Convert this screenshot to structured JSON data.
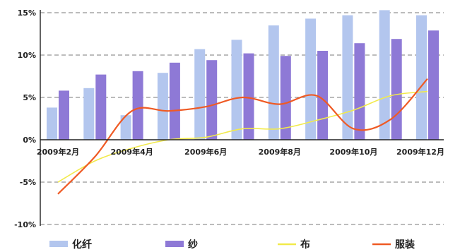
{
  "chart_data": {
    "type": "bar",
    "title": "",
    "xlabel": "",
    "ylabel": "",
    "ylim": [
      -10,
      15
    ],
    "yticks": [
      "15%",
      "10%",
      "5%",
      "0%",
      "-5%",
      "-10%"
    ],
    "ytick_values": [
      15,
      10,
      5,
      0,
      -5,
      -10
    ],
    "months": [
      2,
      3,
      4,
      5,
      6,
      7,
      8,
      9,
      10,
      11,
      12
    ],
    "xtick_labels": [
      "2009年2月",
      "2009年4月",
      "2009年6月",
      "2009年8月",
      "2009年10月",
      "2009年12月"
    ],
    "xtick_months": [
      2,
      4,
      6,
      8,
      10,
      12
    ],
    "grid": true,
    "legend_position": "bottom",
    "series": [
      {
        "name": "化纤",
        "kind": "bar",
        "color": "#b3c6ee",
        "values": [
          3.8,
          6.1,
          2.9,
          7.9,
          10.7,
          11.8,
          13.5,
          14.3,
          14.7,
          15.3,
          14.7
        ]
      },
      {
        "name": "纱",
        "kind": "bar",
        "color": "#8e79d6",
        "values": [
          5.8,
          7.7,
          8.1,
          9.1,
          9.4,
          10.2,
          9.9,
          10.5,
          11.4,
          11.9,
          12.9
        ]
      },
      {
        "name": "布",
        "kind": "line",
        "color": "#f2ea4a",
        "values": [
          -5.0,
          -2.5,
          -1.0,
          0.0,
          0.3,
          1.3,
          1.3,
          2.3,
          3.5,
          5.2,
          5.7
        ]
      },
      {
        "name": "服装",
        "kind": "line",
        "color": "#ef5a24",
        "values": [
          -6.4,
          -2.0,
          3.4,
          3.4,
          3.9,
          5.0,
          4.2,
          5.2,
          1.3,
          2.4,
          7.2
        ]
      }
    ]
  }
}
